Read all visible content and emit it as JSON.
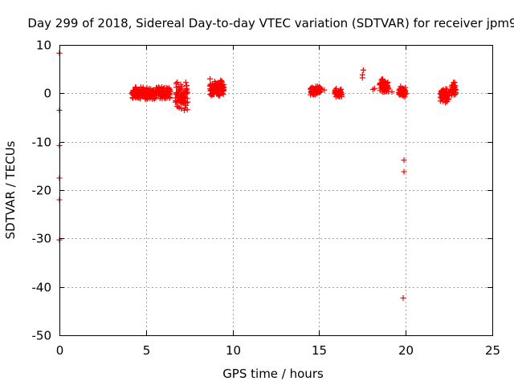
{
  "chart_data": {
    "type": "scatter",
    "title": "Day 299 of 2018, Sidereal Day-to-day VTEC variation (SDTVAR) for receiver jpm9",
    "xlabel": "GPS time / hours",
    "ylabel": "SDTVAR / TECUs",
    "xlim": [
      0,
      25
    ],
    "ylim": [
      -50,
      10
    ],
    "xticks": [
      0,
      5,
      10,
      15,
      20,
      25
    ],
    "yticks": [
      10,
      0,
      -10,
      -20,
      -30,
      -40,
      -50
    ],
    "grid": true,
    "marker": "plus",
    "color": "#ff0000",
    "series": [
      {
        "name": "SDTVAR",
        "clusters": [
          {
            "x_start": 4.2,
            "x_end": 6.4,
            "y_min": -1.2,
            "y_max": 1.4
          },
          {
            "x_start": 6.7,
            "x_end": 7.4,
            "y_min": -3.5,
            "y_max": 2.5
          },
          {
            "x_start": 8.7,
            "x_end": 9.5,
            "y_min": -0.5,
            "y_max": 2.8
          },
          {
            "x_start": 14.5,
            "x_end": 15.1,
            "y_min": -0.3,
            "y_max": 1.5
          },
          {
            "x_start": 15.9,
            "x_end": 16.3,
            "y_min": -0.8,
            "y_max": 1.0
          },
          {
            "x_start": 18.5,
            "x_end": 19.0,
            "y_min": 0.0,
            "y_max": 3.0
          },
          {
            "x_start": 19.6,
            "x_end": 20.0,
            "y_min": -0.8,
            "y_max": 1.5
          },
          {
            "x_start": 22.0,
            "x_end": 22.5,
            "y_min": -2.0,
            "y_max": 1.0
          },
          {
            "x_start": 22.6,
            "x_end": 22.9,
            "y_min": -0.5,
            "y_max": 2.5
          }
        ],
        "points": [
          {
            "x": 0.0,
            "y": 8.3
          },
          {
            "x": 0.0,
            "y": -3.5
          },
          {
            "x": 0.0,
            "y": -10.8
          },
          {
            "x": 0.0,
            "y": -17.5
          },
          {
            "x": 0.0,
            "y": -22.0
          },
          {
            "x": 0.0,
            "y": -30.3
          },
          {
            "x": 8.7,
            "y": 3.0
          },
          {
            "x": 8.7,
            "y": 1.5
          },
          {
            "x": 8.7,
            "y": -0.2
          },
          {
            "x": 9.0,
            "y": 2.0
          },
          {
            "x": 9.2,
            "y": 1.0
          },
          {
            "x": 9.3,
            "y": 0.5
          },
          {
            "x": 9.5,
            "y": 1.8
          },
          {
            "x": 15.3,
            "y": 0.7
          },
          {
            "x": 17.5,
            "y": 3.2
          },
          {
            "x": 17.5,
            "y": 3.8
          },
          {
            "x": 17.55,
            "y": 4.8
          },
          {
            "x": 18.1,
            "y": 0.8
          },
          {
            "x": 18.2,
            "y": 1.0
          },
          {
            "x": 19.2,
            "y": 0.3
          },
          {
            "x": 19.9,
            "y": -13.8
          },
          {
            "x": 19.9,
            "y": -16.2
          },
          {
            "x": 19.85,
            "y": -42.3
          }
        ]
      }
    ]
  }
}
